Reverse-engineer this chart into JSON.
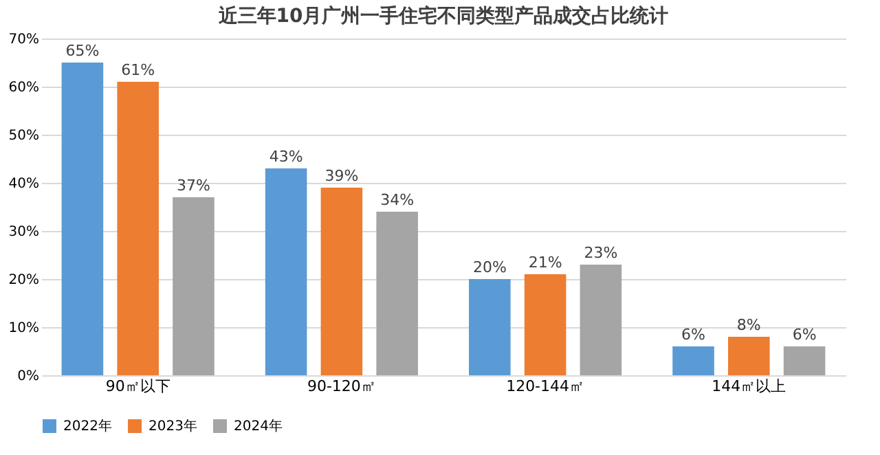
{
  "chart_data": {
    "type": "bar",
    "title": "近三年10月广州一手住宅不同类型产品成交占比统计",
    "categories": [
      "90㎡以下",
      "90-120㎡",
      "120-144㎡",
      "144㎡以上"
    ],
    "series": [
      {
        "name": "2022年",
        "color": "#5b9bd5",
        "values": [
          65,
          43,
          20,
          6
        ],
        "value_labels": [
          "65%",
          "43%",
          "20%",
          "6%"
        ]
      },
      {
        "name": "2023年",
        "color": "#ed7d31",
        "values": [
          61,
          39,
          21,
          8
        ],
        "value_labels": [
          "61%",
          "39%",
          "21%",
          "8%"
        ]
      },
      {
        "name": "2024年",
        "color": "#a5a5a5",
        "values": [
          37,
          34,
          23,
          6
        ],
        "value_labels": [
          "37%",
          "34%",
          "23%",
          "6%"
        ]
      }
    ],
    "ylim": [
      0,
      70
    ],
    "yticks": [
      {
        "value": 0,
        "label": "0%"
      },
      {
        "value": 10,
        "label": "10%"
      },
      {
        "value": 20,
        "label": "20%"
      },
      {
        "value": 30,
        "label": "30%"
      },
      {
        "value": 40,
        "label": "40%"
      },
      {
        "value": 50,
        "label": "50%"
      },
      {
        "value": 60,
        "label": "60%"
      },
      {
        "value": 70,
        "label": "70%"
      }
    ],
    "grid": "y",
    "legend": "bottom"
  }
}
